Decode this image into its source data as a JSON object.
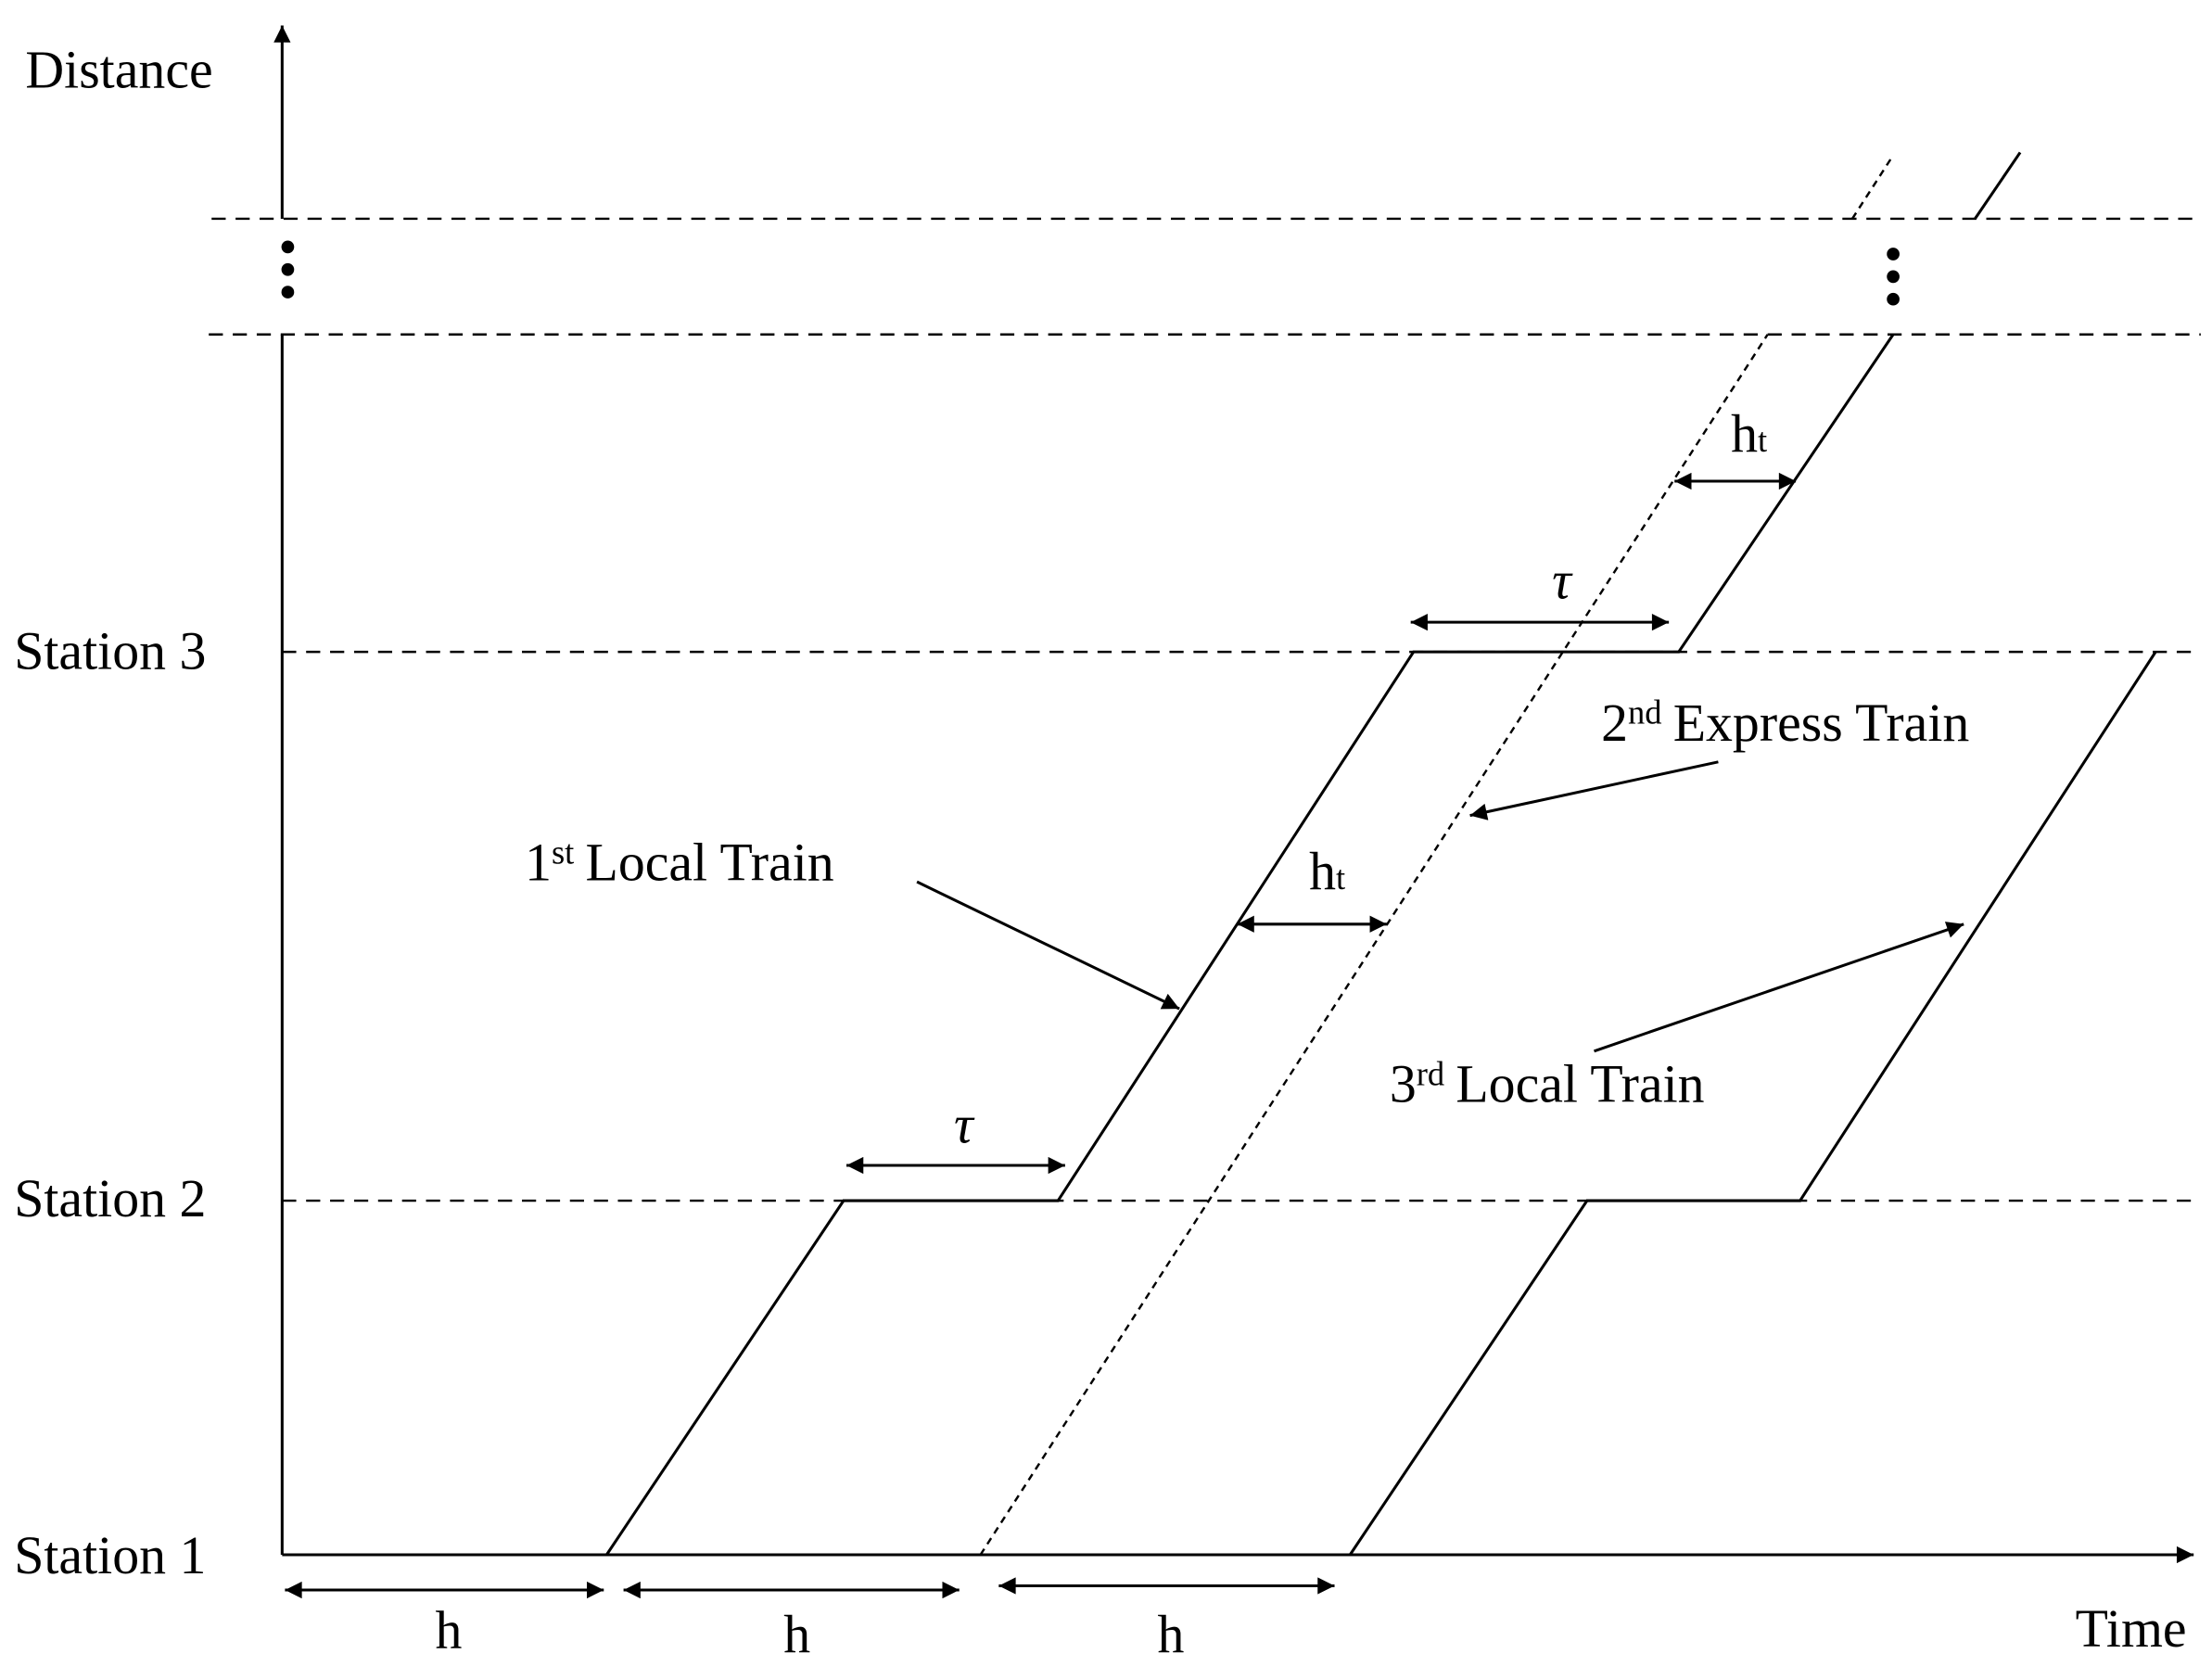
{
  "axes": {
    "y_label": "Distance",
    "x_label": "Time"
  },
  "stations": [
    "Station 1",
    "Station 2",
    "Station 3"
  ],
  "headways": [
    "h",
    "h",
    "h"
  ],
  "dwell_labels": [
    "τ",
    "τ"
  ],
  "transfer_labels": [
    {
      "base": "h",
      "sub": "t"
    },
    {
      "base": "h",
      "sub": "t"
    }
  ],
  "trains": [
    {
      "ordinal": "1",
      "suffix": "st",
      "label": "Local Train"
    },
    {
      "ordinal": "2",
      "suffix": "nd",
      "label": "Express Train"
    },
    {
      "ordinal": "3",
      "suffix": "rd",
      "label": "Local Train"
    }
  ]
}
